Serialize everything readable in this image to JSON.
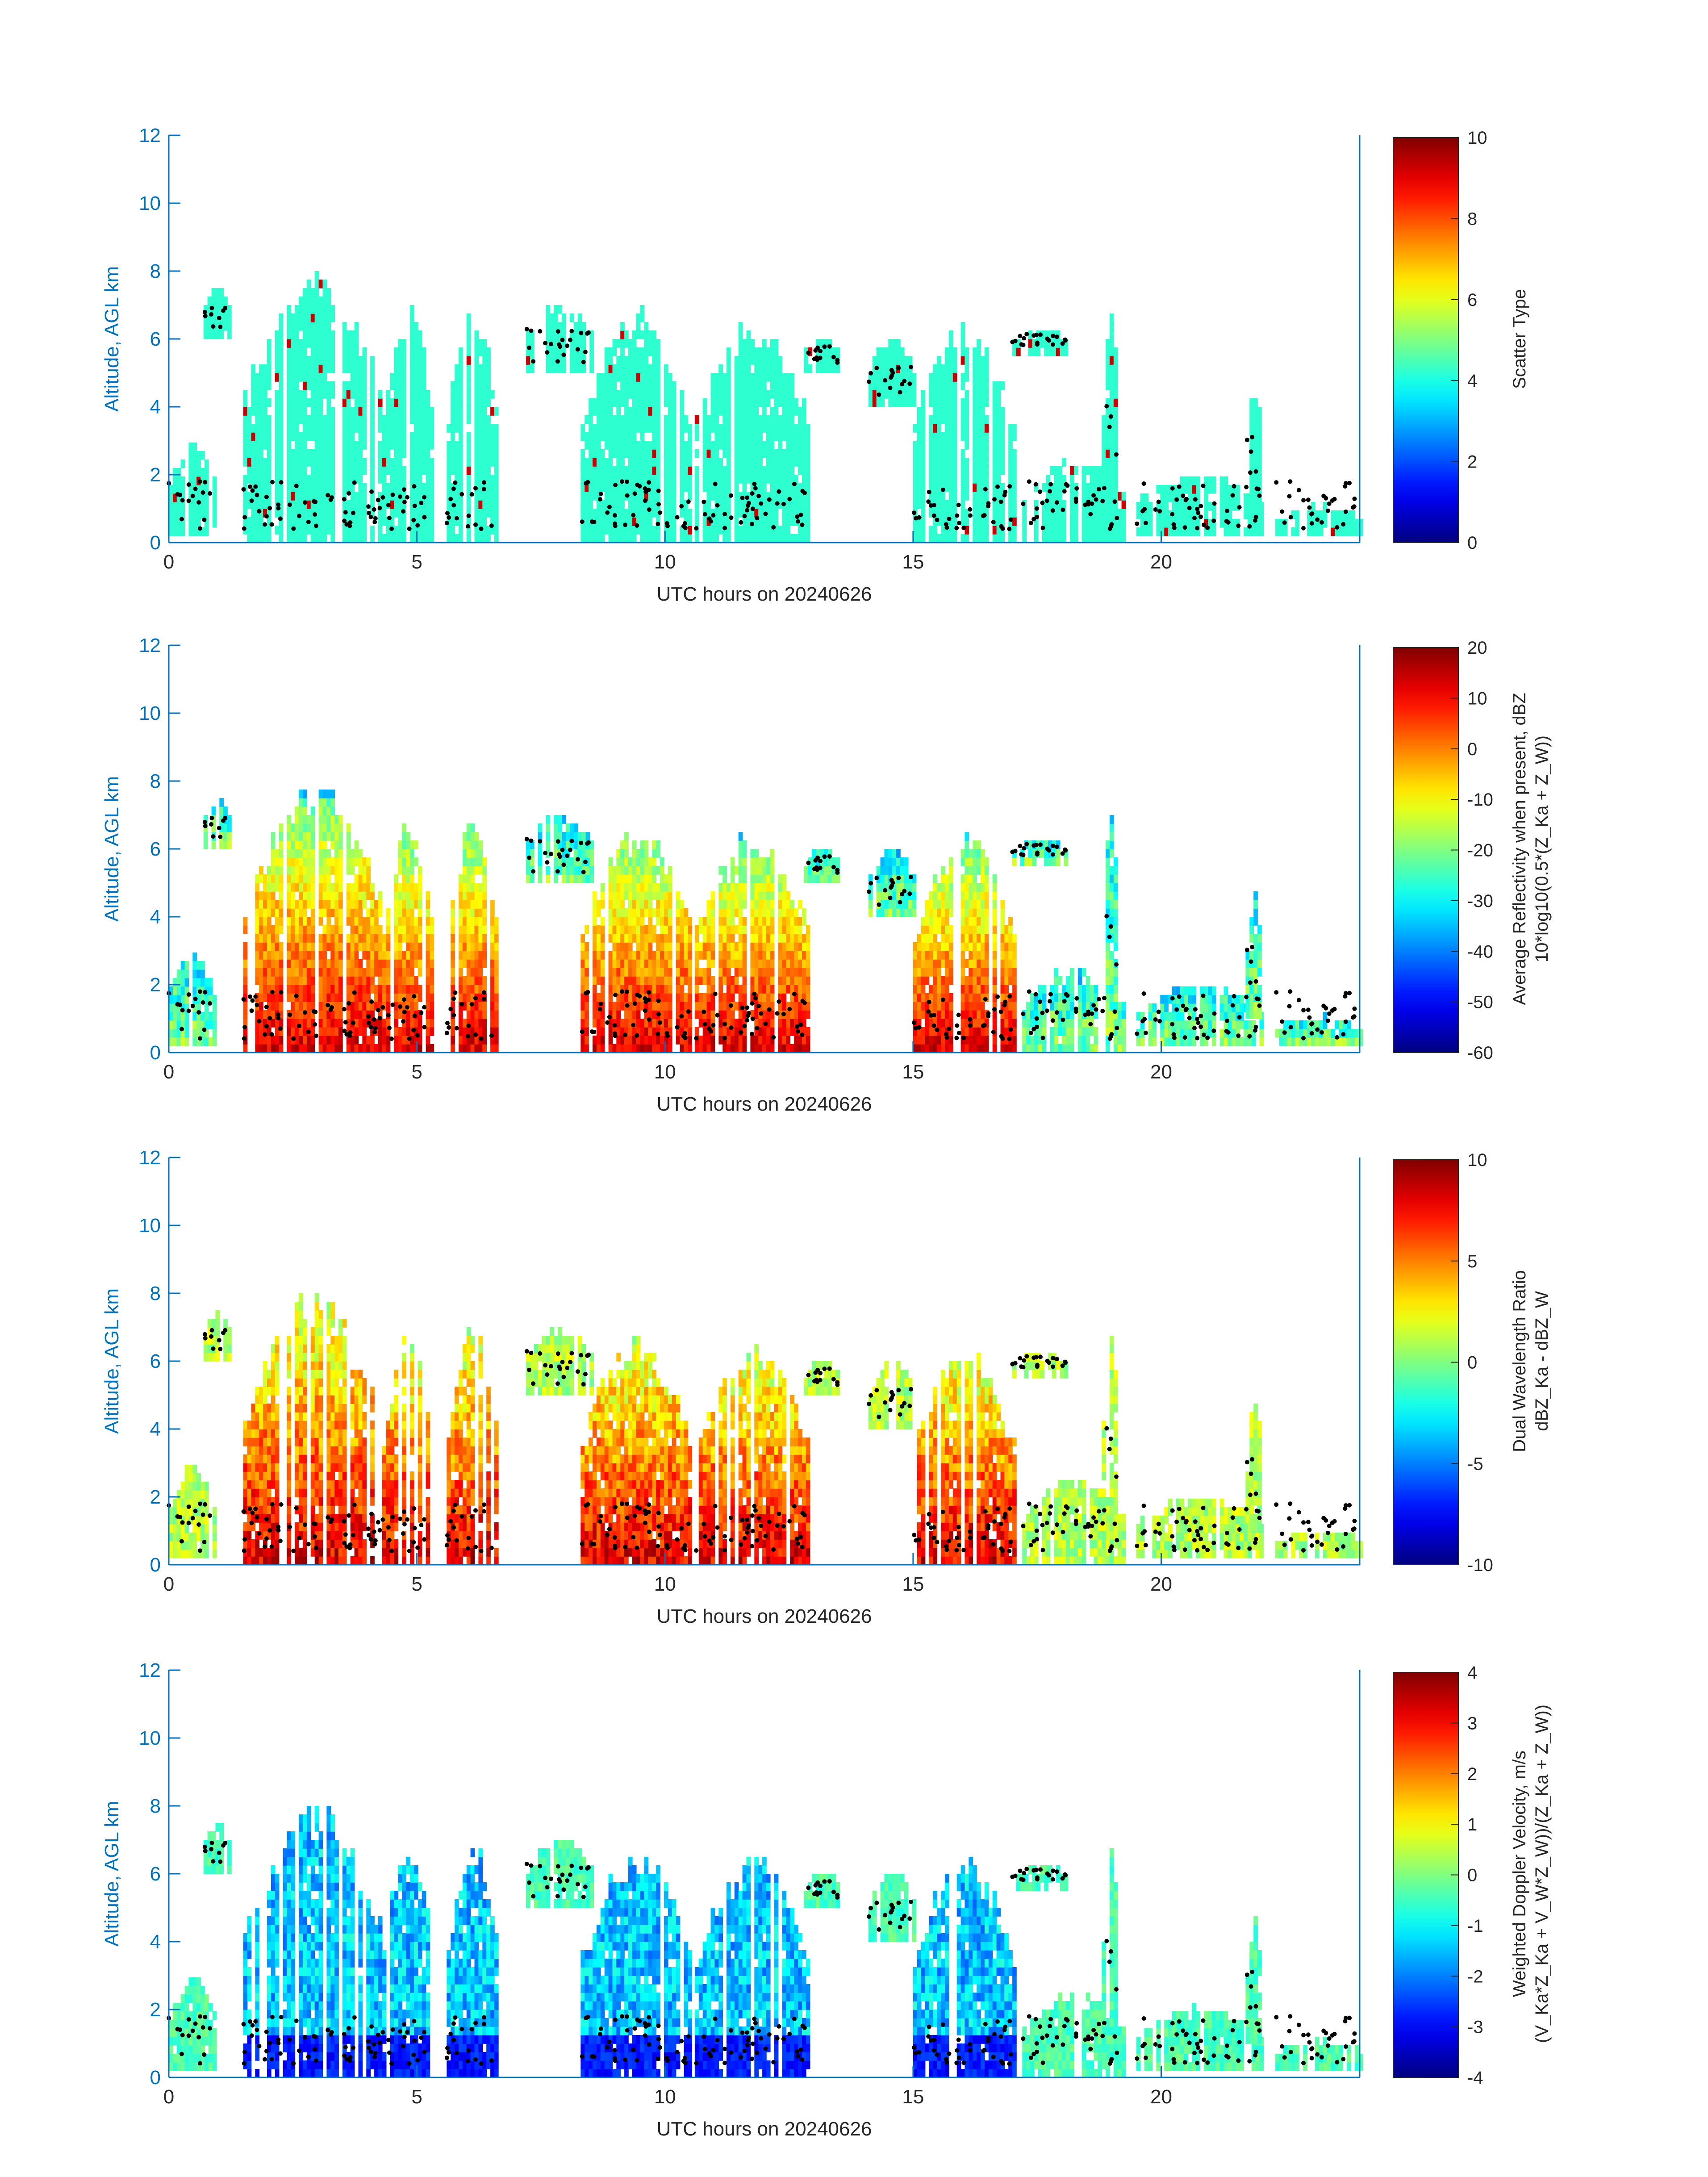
{
  "chart_data": [
    {
      "type": "heatmap",
      "xlabel": "UTC hours on 20240626",
      "ylabel": "Altitude, AGL km",
      "xlim": [
        0,
        24
      ],
      "ylim": [
        0,
        12
      ],
      "xticks": [
        0,
        5,
        10,
        15,
        20
      ],
      "yticks": [
        0,
        2,
        4,
        6,
        8,
        10,
        12
      ],
      "colorbar": {
        "label_lines": [
          "Scatter Type"
        ],
        "clim": [
          0,
          10
        ],
        "ticks": [
          0,
          2,
          4,
          6,
          8,
          10
        ]
      },
      "field": "scatter_type"
    },
    {
      "type": "heatmap",
      "xlabel": "UTC hours on 20240626",
      "ylabel": "Altitude, AGL km",
      "xlim": [
        0,
        24
      ],
      "ylim": [
        0,
        12
      ],
      "xticks": [
        0,
        5,
        10,
        15,
        20
      ],
      "yticks": [
        0,
        2,
        4,
        6,
        8,
        10,
        12
      ],
      "colorbar": {
        "label_lines": [
          "Average Reflectivity when present, dBZ",
          "10*log10(0.5*(Z_Ka + Z_W))"
        ],
        "clim": [
          -60,
          20
        ],
        "ticks": [
          -60,
          -50,
          -40,
          -30,
          -20,
          -10,
          0,
          10,
          20
        ]
      },
      "field": "reflectivity"
    },
    {
      "type": "heatmap",
      "xlabel": "UTC hours on 20240626",
      "ylabel": "Altitude, AGL km",
      "xlim": [
        0,
        24
      ],
      "ylim": [
        0,
        12
      ],
      "xticks": [
        0,
        5,
        10,
        15,
        20
      ],
      "yticks": [
        0,
        2,
        4,
        6,
        8,
        10,
        12
      ],
      "colorbar": {
        "label_lines": [
          "Dual Wavelength Ratio",
          "dBZ_Ka - dBZ_W"
        ],
        "clim": [
          -10,
          10
        ],
        "ticks": [
          -10,
          -5,
          0,
          5,
          10
        ]
      },
      "field": "dwr"
    },
    {
      "type": "heatmap",
      "xlabel": "UTC hours on 20240626",
      "ylabel": "Altitude, AGL km",
      "xlim": [
        0,
        24
      ],
      "ylim": [
        0,
        12
      ],
      "xticks": [
        0,
        5,
        10,
        15,
        20
      ],
      "yticks": [
        0,
        2,
        4,
        6,
        8,
        10,
        12
      ],
      "colorbar": {
        "label_lines": [
          "Weighted Doppler Velocity, m/s",
          "(V_Ka*Z_Ka + V_W*Z_W))/(Z_Ka + Z_W))"
        ],
        "clim": [
          -4,
          4
        ],
        "ticks": [
          -4,
          -3,
          -2,
          -1,
          0,
          1,
          2,
          3,
          4
        ]
      },
      "field": "velocity"
    }
  ],
  "cloud_systems": [
    {
      "t0": 0.0,
      "t1": 0.9,
      "base": 0.2,
      "top": 3.0
    },
    {
      "t0": 0.7,
      "t1": 1.2,
      "base": 6.0,
      "top": 7.5
    },
    {
      "t0": 1.5,
      "t1": 4.3,
      "base": 0.0,
      "top": 8.0
    },
    {
      "t0": 4.3,
      "t1": 5.3,
      "base": 0.0,
      "top": 7.0
    },
    {
      "t0": 5.6,
      "t1": 6.6,
      "base": 0.0,
      "top": 7.0
    },
    {
      "t0": 7.2,
      "t1": 8.5,
      "base": 5.0,
      "top": 7.0
    },
    {
      "t0": 8.3,
      "t1": 10.5,
      "base": 0.0,
      "top": 6.8
    },
    {
      "t0": 10.6,
      "t1": 12.9,
      "base": 0.0,
      "top": 6.5
    },
    {
      "t0": 12.8,
      "t1": 13.5,
      "base": 5.0,
      "top": 6.0
    },
    {
      "t0": 14.1,
      "t1": 15.0,
      "base": 4.0,
      "top": 6.0
    },
    {
      "t0": 15.0,
      "t1": 17.0,
      "base": 0.0,
      "top": 6.5
    },
    {
      "t0": 17.0,
      "t1": 18.1,
      "base": 5.5,
      "top": 6.2
    },
    {
      "t0": 17.2,
      "t1": 19.2,
      "base": 0.0,
      "top": 2.5
    },
    {
      "t0": 18.8,
      "t1": 19.1,
      "base": 0.5,
      "top": 7.4
    },
    {
      "t0": 19.5,
      "t1": 22.0,
      "base": 0.2,
      "top": 2.0
    },
    {
      "t0": 21.7,
      "t1": 22.0,
      "base": 1.0,
      "top": 4.8
    },
    {
      "t0": 22.3,
      "t1": 24.0,
      "base": 0.2,
      "top": 1.0
    }
  ]
}
